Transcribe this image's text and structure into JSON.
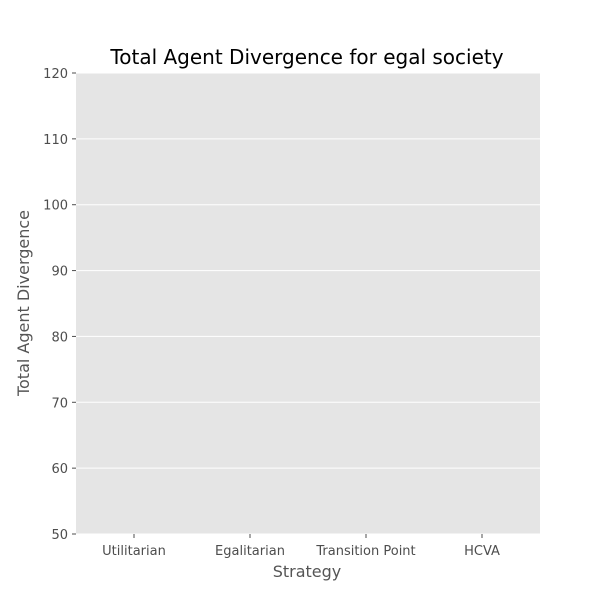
{
  "chart_data": {
    "type": "bar",
    "title": "Total Agent Divergence for egal society",
    "xlabel": "Strategy",
    "ylabel": "Total Agent Divergence",
    "categories": [
      "Utilitarian",
      "Egalitarian",
      "Transition Point",
      "HCVA"
    ],
    "ylim": [
      50,
      120
    ],
    "yticks": [
      50,
      60,
      70,
      80,
      90,
      100,
      110,
      120
    ],
    "grid": true,
    "background_color": "#e5e5e5",
    "grid_color": "#ffffff"
  }
}
